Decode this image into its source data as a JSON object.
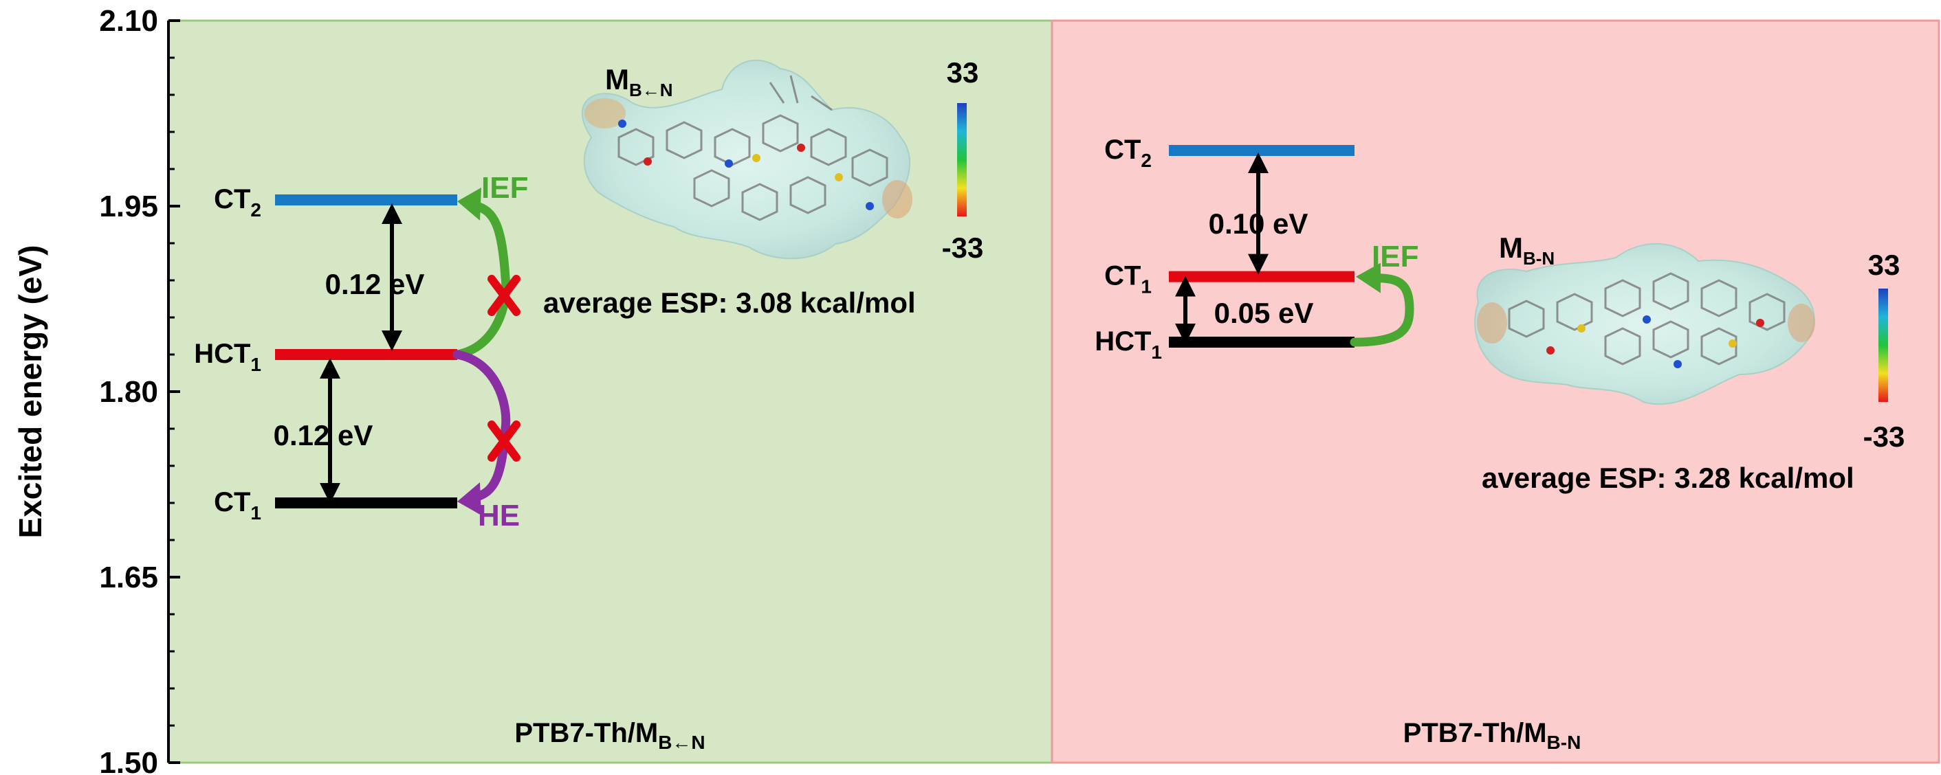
{
  "y_axis": {
    "label": "Excited energy (eV)",
    "ticks": [
      "2.10",
      "1.95",
      "1.80",
      "1.65",
      "1.50"
    ],
    "range": [
      1.5,
      2.1
    ]
  },
  "colors": {
    "left_panel_bg": "#d6e7c6",
    "left_panel_border": "#9cc77c",
    "right_panel_bg": "#fbcdcd",
    "right_panel_border": "#ef9a9a",
    "ct2_level": "#1778c4",
    "hct1_level": "#e30613",
    "ct1_level": "#000000",
    "ief_arrow": "#4aa832",
    "he_arrow": "#8a2ea3",
    "blocked_mark": "#e30613"
  },
  "left_panel": {
    "title_main": "PTB7-Th/M",
    "title_sub": "B←N",
    "molecule_label_main": "M",
    "molecule_label_sub": "B←N",
    "scale_max": "33",
    "scale_min": "-33",
    "esp_text": "average ESP: 3.08 kcal/mol",
    "levels": [
      {
        "label_main": "CT",
        "label_sub": "2",
        "energy": 1.955
      },
      {
        "label_main": "HCT",
        "label_sub": "1",
        "energy": 1.83
      },
      {
        "label_main": "CT",
        "label_sub": "1",
        "energy": 1.71
      }
    ],
    "gap_upper": "0.12 eV",
    "gap_lower": "0.12 eV",
    "ief_label": "IEF",
    "he_label": "HE"
  },
  "right_panel": {
    "title_main": "PTB7-Th/M",
    "title_sub": "B-N",
    "molecule_label_main": "M",
    "molecule_label_sub": "B-N",
    "scale_max": "33",
    "scale_min": "-33",
    "esp_text": "average ESP: 3.28 kcal/mol",
    "levels": [
      {
        "label_main": "CT",
        "label_sub": "2",
        "energy": 1.995
      },
      {
        "label_main": "CT",
        "label_sub": "1",
        "energy": 1.893
      },
      {
        "label_main": "HCT",
        "label_sub": "1",
        "energy": 1.84
      }
    ],
    "gap_upper": "0.10 eV",
    "gap_lower": "0.05 eV",
    "ief_label": "IEF"
  }
}
